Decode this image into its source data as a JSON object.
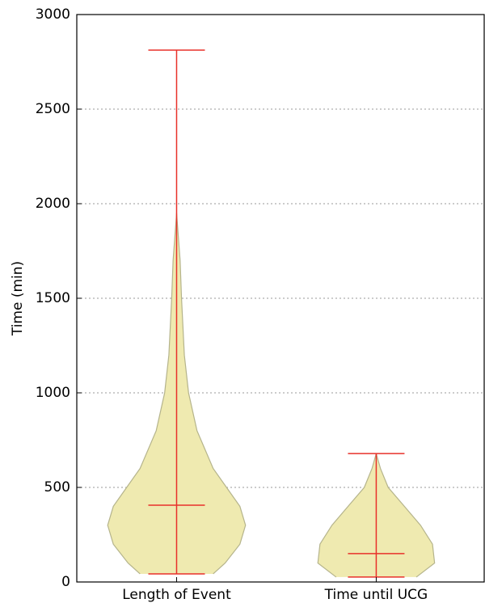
{
  "chart_data": {
    "type": "violin",
    "ylabel": "Time (min)",
    "ylim": [
      0,
      3000
    ],
    "yticks": [
      0,
      500,
      1000,
      1500,
      2000,
      2500,
      3000
    ],
    "grid": true,
    "fill_color": "#efeab0",
    "edge_color": "#b5b48c",
    "line_color": "#e8302a",
    "violins": [
      {
        "name": "Length of Event",
        "min": 43,
        "median": 406,
        "max": 2812,
        "density": {
          "y": [
            43,
            100,
            200,
            300,
            400,
            500,
            600,
            800,
            1000,
            1200,
            1500,
            1700,
            1950
          ],
          "width": [
            0.52,
            0.69,
            0.9,
            0.98,
            0.9,
            0.71,
            0.52,
            0.29,
            0.17,
            0.11,
            0.07,
            0.05,
            0
          ]
        }
      },
      {
        "name": "Time until UCG",
        "min": 26,
        "median": 150,
        "max": 679,
        "density": {
          "y": [
            26,
            100,
            200,
            300,
            400,
            500,
            600,
            679
          ],
          "width": [
            0.57,
            0.83,
            0.8,
            0.63,
            0.4,
            0.17,
            0.06,
            0
          ]
        }
      }
    ]
  }
}
